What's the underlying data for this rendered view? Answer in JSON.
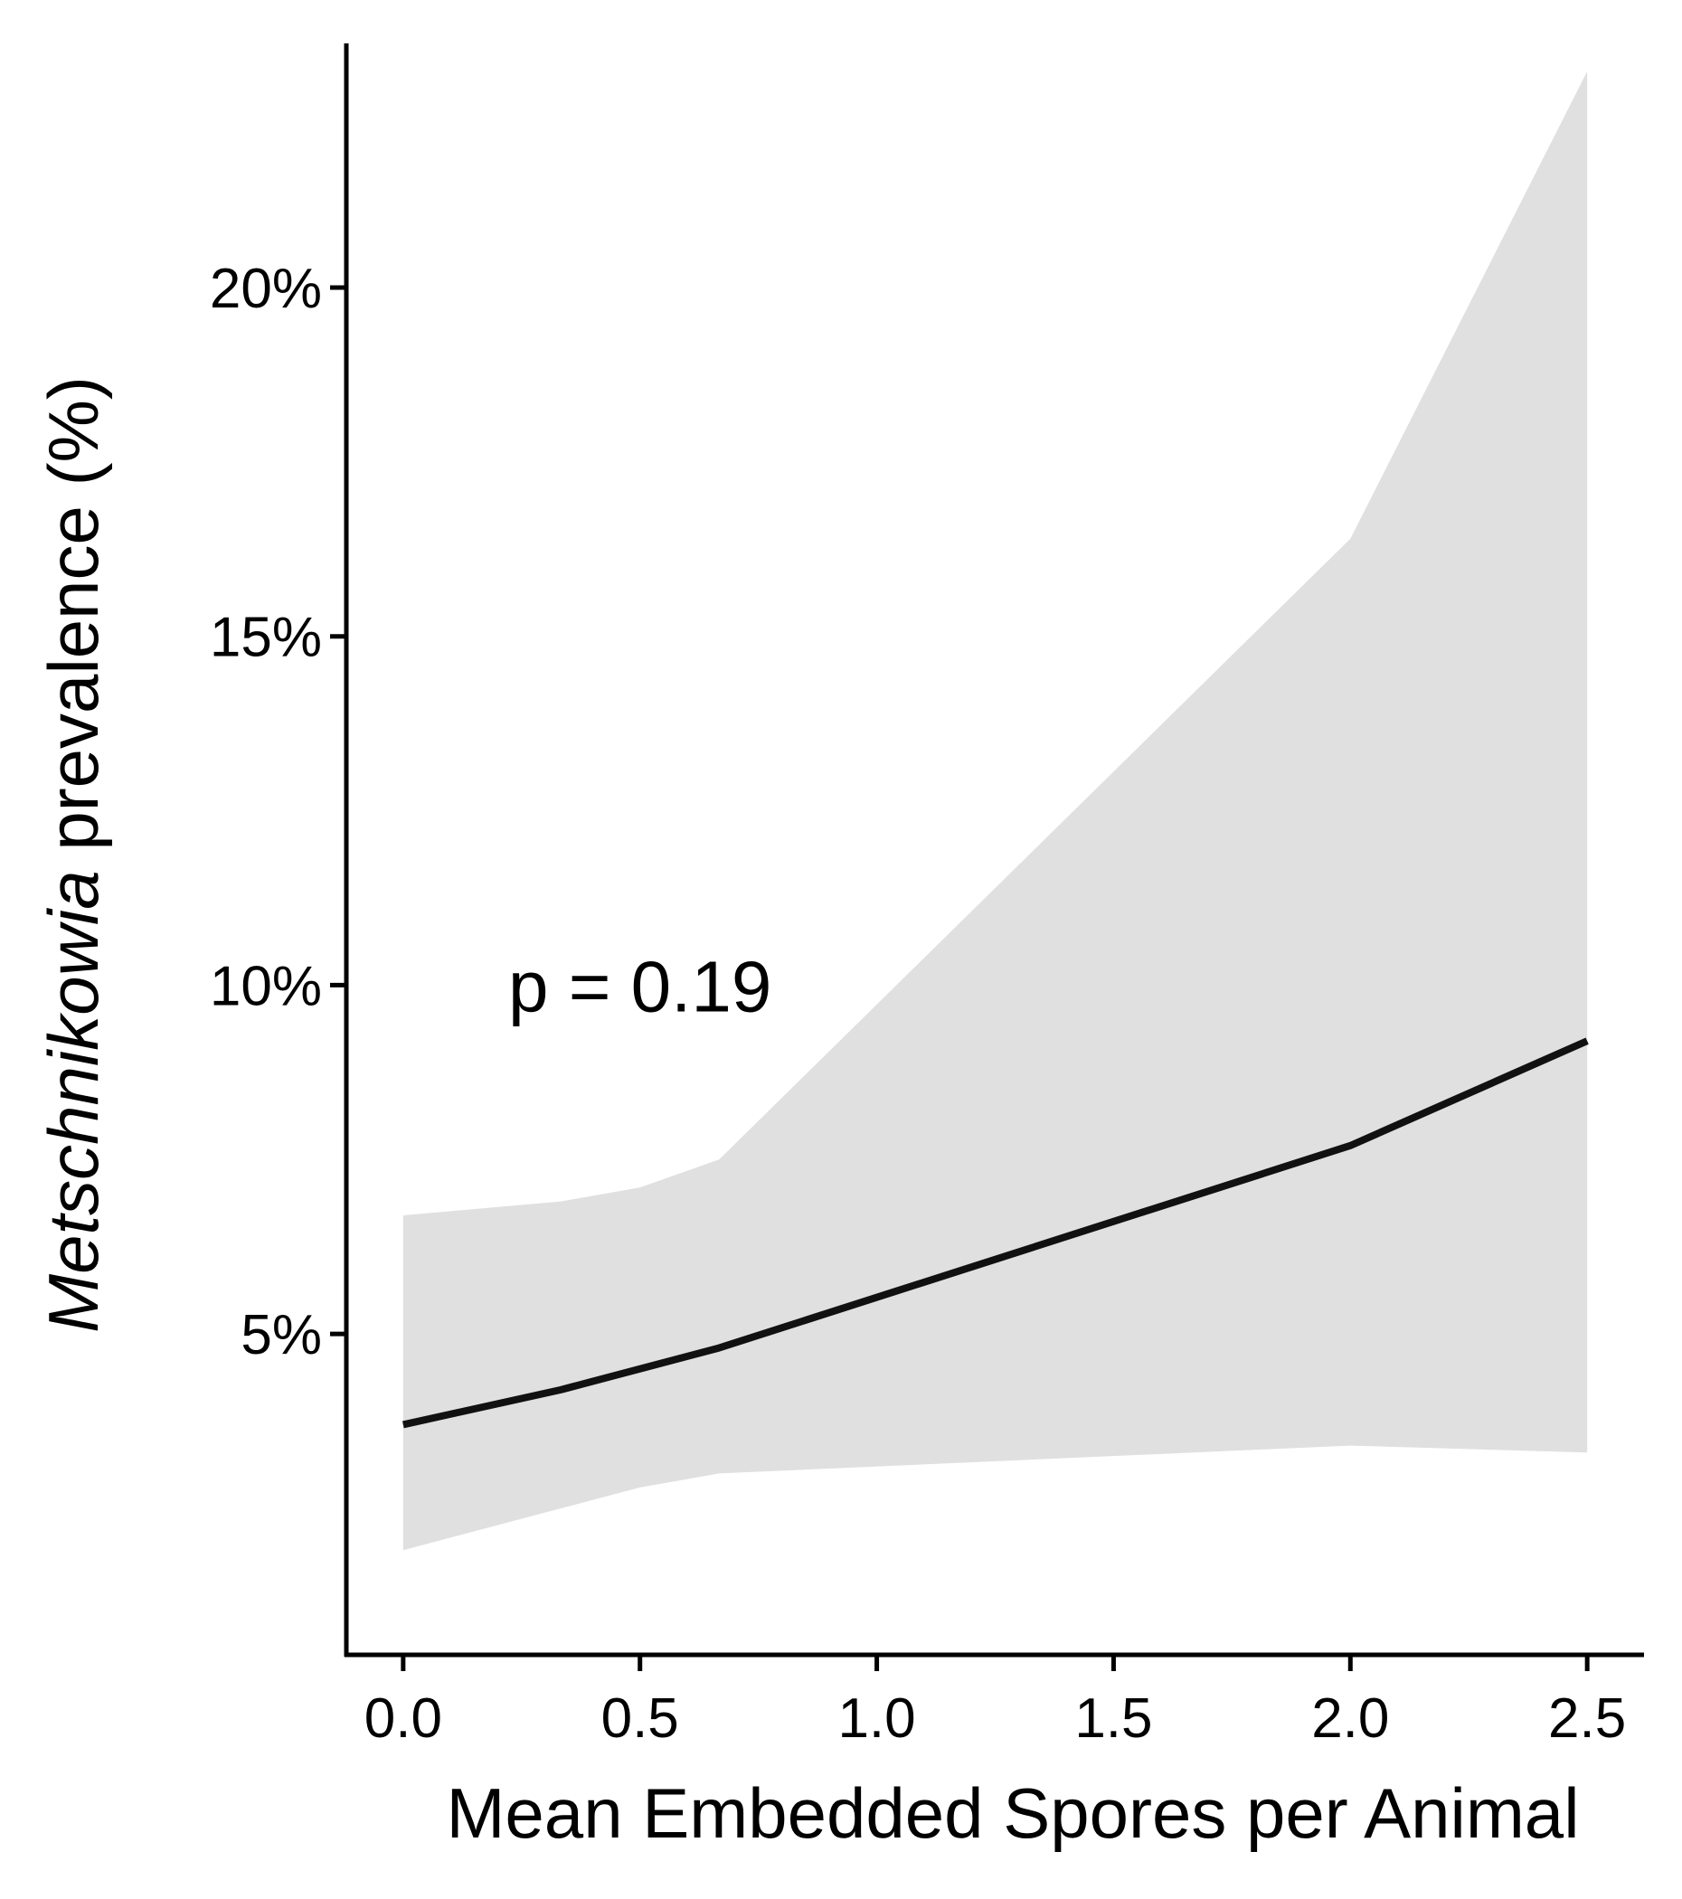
{
  "chart_data": {
    "type": "line",
    "xlabel": "Mean Embedded Spores per Animal",
    "ylabel_italic": "Metschnikowia",
    "ylabel_rest": " prevalence (%)",
    "xlim": [
      -0.12,
      2.62
    ],
    "ylim": [
      0.4,
      23.5
    ],
    "x_ticks": [
      0.0,
      0.5,
      1.0,
      1.5,
      2.0,
      2.5
    ],
    "x_tick_labels": [
      "0.0",
      "0.5",
      "1.0",
      "1.5",
      "2.0",
      "2.5"
    ],
    "y_ticks": [
      5,
      10,
      15,
      20
    ],
    "y_tick_labels": [
      "5%",
      "10%",
      "15%",
      "20%"
    ],
    "annotation": {
      "text": "p = 0.19",
      "x": 0.5,
      "y": 10
    },
    "series": [
      {
        "x": [
          0.0,
          0.333,
          0.5,
          0.667,
          2.0,
          2.5
        ],
        "values": [
          3.7,
          4.2,
          4.5,
          4.8,
          7.7,
          9.2
        ],
        "lower": [
          1.9,
          2.5,
          2.8,
          3.0,
          3.4,
          3.3
        ],
        "upper": [
          6.7,
          6.9,
          7.1,
          7.5,
          16.4,
          23.1
        ]
      }
    ],
    "colors": {
      "line": "#111111",
      "ribbon": "#e0e0e0",
      "axis": "#000000"
    },
    "grid": false,
    "legend": "none"
  }
}
